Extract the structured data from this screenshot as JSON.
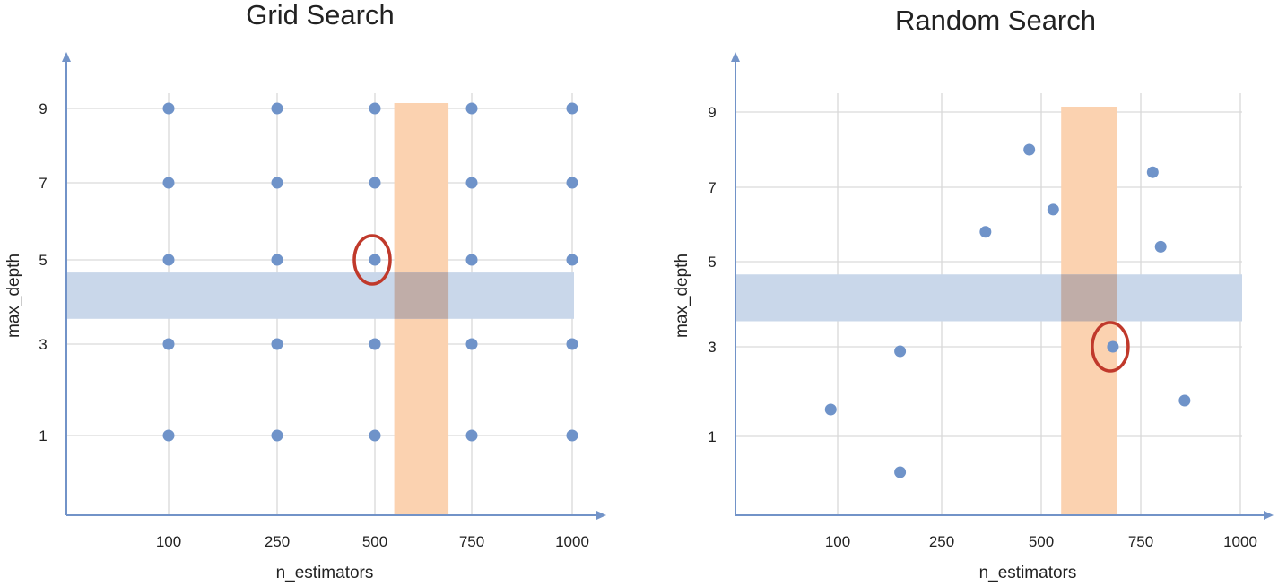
{
  "chart_data": [
    {
      "type": "scatter",
      "title": "Grid Search",
      "xlabel": "n_estimators",
      "ylabel": "max_depth",
      "x_ticks": [
        "100",
        "250",
        "500",
        "750",
        "1000"
      ],
      "y_ticks": [
        "1",
        "3",
        "5",
        "7",
        "9"
      ],
      "grid": true,
      "points": [
        {
          "x": 100,
          "y": 9
        },
        {
          "x": 250,
          "y": 9
        },
        {
          "x": 500,
          "y": 9
        },
        {
          "x": 750,
          "y": 9
        },
        {
          "x": 1000,
          "y": 9
        },
        {
          "x": 100,
          "y": 7
        },
        {
          "x": 250,
          "y": 7
        },
        {
          "x": 500,
          "y": 7
        },
        {
          "x": 750,
          "y": 7
        },
        {
          "x": 1000,
          "y": 7
        },
        {
          "x": 100,
          "y": 5
        },
        {
          "x": 250,
          "y": 5
        },
        {
          "x": 500,
          "y": 5
        },
        {
          "x": 750,
          "y": 5
        },
        {
          "x": 1000,
          "y": 5
        },
        {
          "x": 100,
          "y": 3
        },
        {
          "x": 250,
          "y": 3
        },
        {
          "x": 500,
          "y": 3
        },
        {
          "x": 750,
          "y": 3
        },
        {
          "x": 1000,
          "y": 3
        },
        {
          "x": 100,
          "y": 1
        },
        {
          "x": 250,
          "y": 1
        },
        {
          "x": 500,
          "y": 1
        },
        {
          "x": 750,
          "y": 1
        },
        {
          "x": 1000,
          "y": 1
        }
      ],
      "highlight_point": {
        "x": 500,
        "y": 5
      },
      "x_band": [
        550,
        690
      ],
      "y_band": [
        3.6,
        4.7
      ],
      "colors": {
        "point": "#6f93c9",
        "grid": "#d9d9d9",
        "axis": "#7293c8",
        "x_band": "#fbd2b0",
        "y_band": "#c9d7ea",
        "overlap": "#c0ada8",
        "highlight": "#c0392b"
      }
    },
    {
      "type": "scatter",
      "title": "Random Search",
      "xlabel": "n_estimators",
      "ylabel": "max_depth",
      "x_ticks": [
        "100",
        "250",
        "500",
        "750",
        "1000"
      ],
      "y_ticks": [
        "1",
        "3",
        "5",
        "7",
        "9"
      ],
      "grid": true,
      "points": [
        {
          "x": 90,
          "y": 1.6
        },
        {
          "x": 190,
          "y": 2.9
        },
        {
          "x": 190,
          "y": 0.2
        },
        {
          "x": 360,
          "y": 5.8
        },
        {
          "x": 470,
          "y": 8
        },
        {
          "x": 530,
          "y": 6.4
        },
        {
          "x": 680,
          "y": 3
        },
        {
          "x": 780,
          "y": 7.4
        },
        {
          "x": 800,
          "y": 5.4
        },
        {
          "x": 860,
          "y": 1.8
        }
      ],
      "highlight_point": {
        "x": 680,
        "y": 3
      },
      "x_band": [
        550,
        690
      ],
      "y_band": [
        3.6,
        4.7
      ],
      "colors": {
        "point": "#6f93c9",
        "grid": "#d9d9d9",
        "axis": "#7293c8",
        "x_band": "#fbd2b0",
        "y_band": "#c9d7ea",
        "overlap": "#c0ada8",
        "highlight": "#c0392b"
      }
    }
  ]
}
